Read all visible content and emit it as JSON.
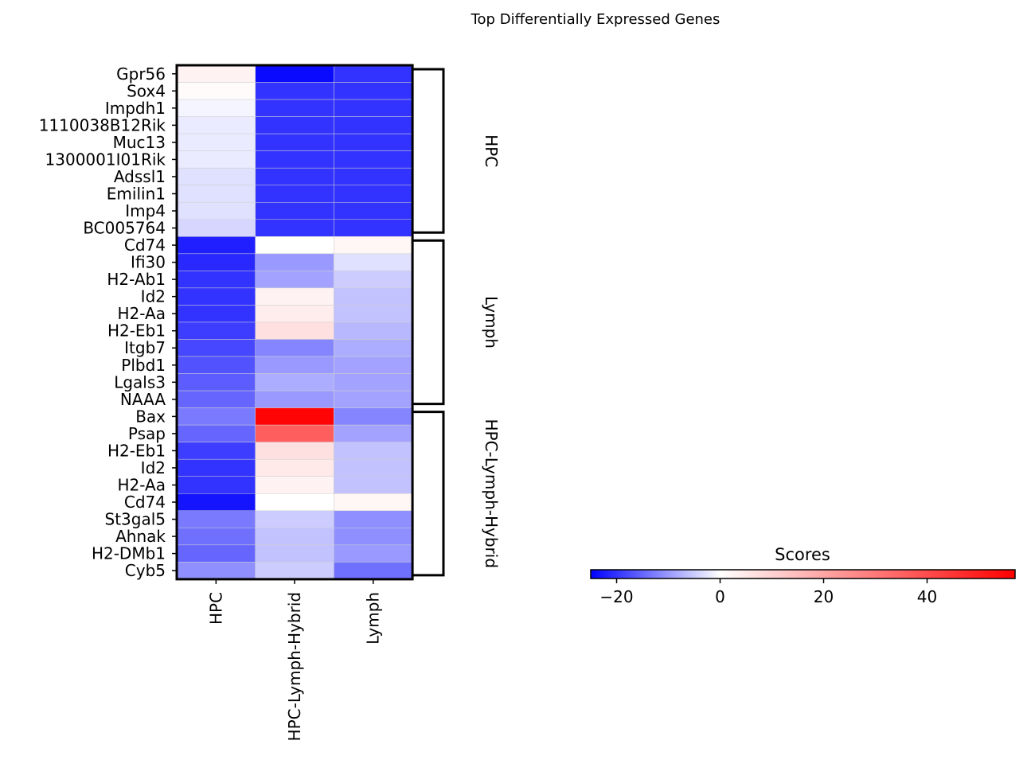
{
  "chart_data": {
    "type": "heatmap",
    "title": "Top Differentially Expressed Genes",
    "columns": [
      "HPC",
      "HPC-Lymph-Hybrid",
      "Lymph"
    ],
    "rows": [
      "Gpr56",
      "Sox4",
      "Impdh1",
      "1110038B12Rik",
      "Muc13",
      "1300001I01Rik",
      "Adssl1",
      "Emilin1",
      "Imp4",
      "BC005764",
      "Cd74",
      "Ifi30",
      "H2-Ab1",
      "Id2",
      "H2-Aa",
      "H2-Eb1",
      "Itgb7",
      "Plbd1",
      "Lgals3",
      "NAAA",
      "Bax",
      "Psap",
      "H2-Eb1",
      "Id2",
      "H2-Aa",
      "Cd74",
      "St3gal5",
      "Ahnak",
      "H2-DMb1",
      "Cyb5"
    ],
    "values": [
      [
        3,
        -24,
        -20
      ],
      [
        1,
        -20,
        -20
      ],
      [
        -1,
        -20,
        -20
      ],
      [
        -2,
        -20,
        -20
      ],
      [
        -2,
        -20,
        -20
      ],
      [
        -2,
        -20,
        -20
      ],
      [
        -3,
        -20,
        -20
      ],
      [
        -3,
        -20,
        -20
      ],
      [
        -3,
        -20,
        -20
      ],
      [
        -4,
        -20,
        -20
      ],
      [
        -22,
        0,
        2
      ],
      [
        -21,
        -10,
        -3
      ],
      [
        -20,
        -9,
        -5
      ],
      [
        -20,
        3,
        -6
      ],
      [
        -20,
        4,
        -6
      ],
      [
        -19,
        7,
        -7
      ],
      [
        -18,
        -12,
        -8
      ],
      [
        -17,
        -10,
        -9
      ],
      [
        -16,
        -8,
        -9
      ],
      [
        -15,
        -10,
        -9
      ],
      [
        -13,
        56,
        -12
      ],
      [
        -15,
        36,
        -9
      ],
      [
        -19,
        7,
        -6
      ],
      [
        -20,
        5,
        -6
      ],
      [
        -20,
        3,
        -6
      ],
      [
        -23,
        0,
        2
      ],
      [
        -13,
        -5,
        -11
      ],
      [
        -14,
        -6,
        -11
      ],
      [
        -15,
        -6,
        -10
      ],
      [
        -11,
        -5,
        -14
      ]
    ],
    "groups": [
      {
        "name": "HPC",
        "start": 0,
        "end": 9
      },
      {
        "name": "Lymph",
        "start": 10,
        "end": 19
      },
      {
        "name": "HPC-Lymph-Hybrid",
        "start": 20,
        "end": 29
      }
    ],
    "colorbar": {
      "label": "Scores",
      "min": -25,
      "max": 57,
      "ticks": [
        -20,
        0,
        20,
        40
      ],
      "colormap": "bwr"
    }
  }
}
